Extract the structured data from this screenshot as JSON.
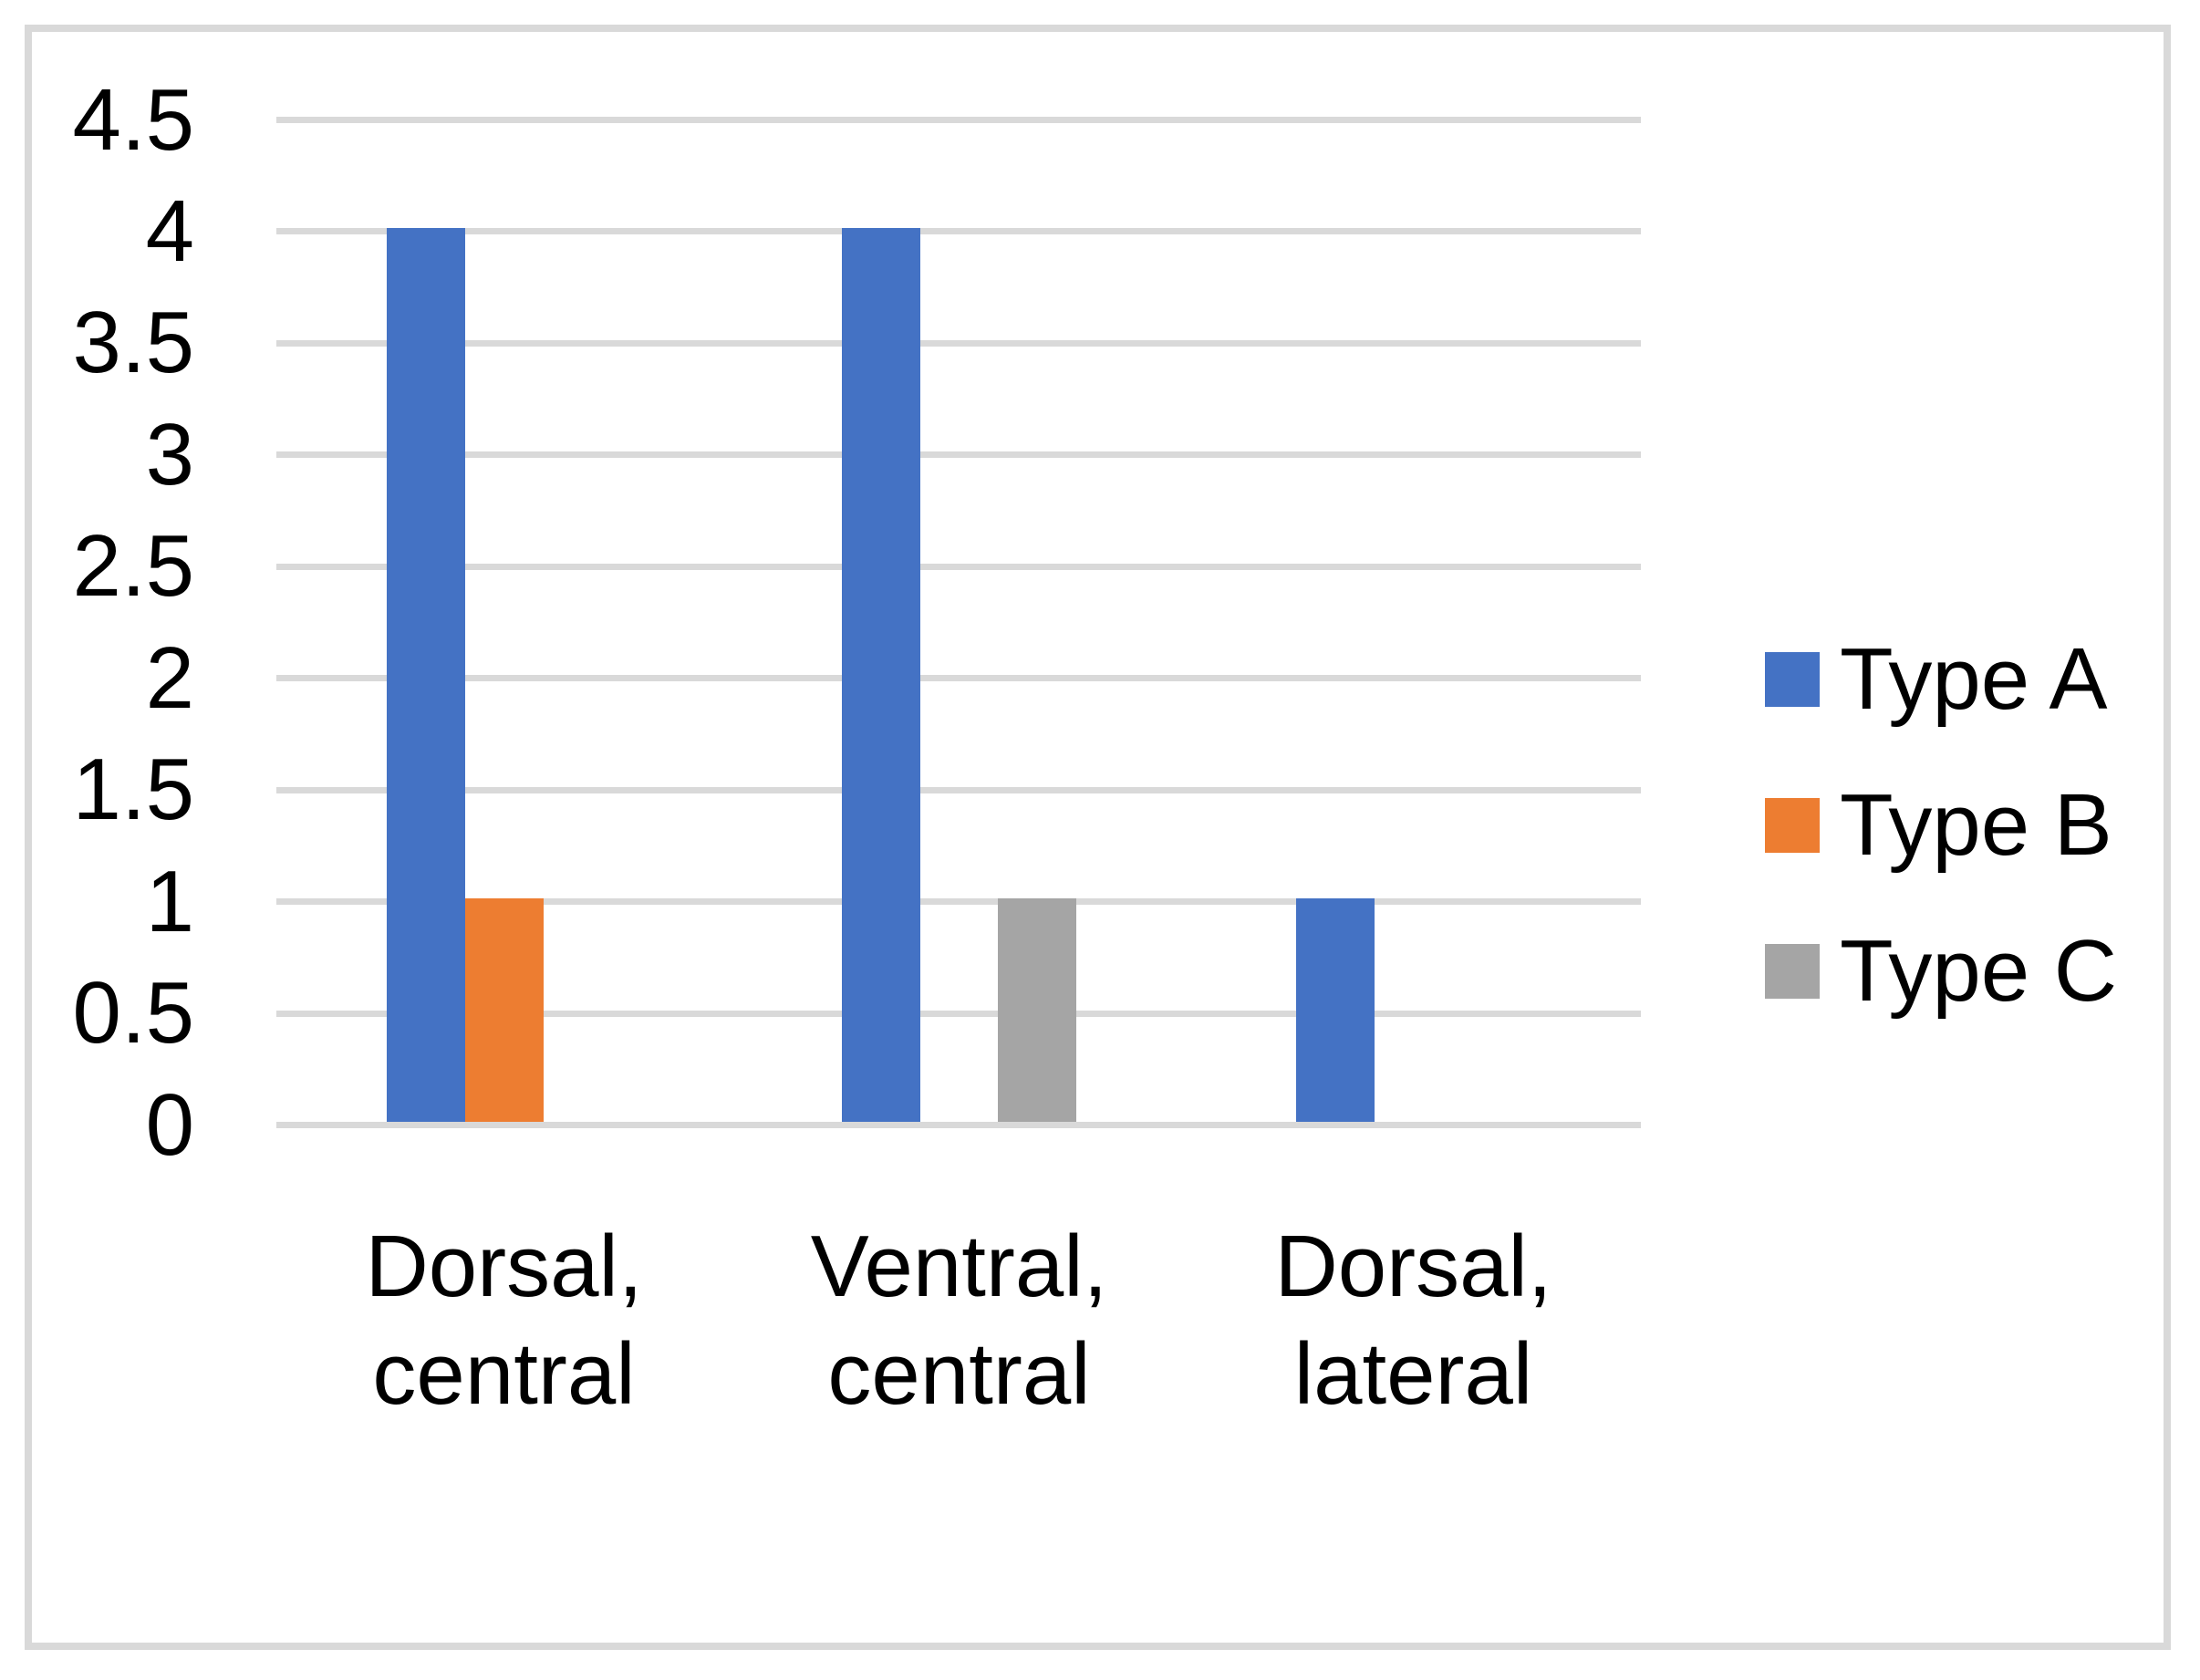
{
  "chart_data": {
    "type": "bar",
    "title": "",
    "xlabel": "",
    "ylabel": "",
    "categories": [
      "Dorsal, central",
      "Ventral, central",
      "Dorsal, lateral"
    ],
    "category_label_lines": [
      [
        "Dorsal,",
        "central"
      ],
      [
        "Ventral,",
        "central"
      ],
      [
        "Dorsal,",
        "lateral"
      ]
    ],
    "series": [
      {
        "name": "Type A",
        "color": "#4472C4",
        "values": [
          4,
          4,
          1
        ]
      },
      {
        "name": "Type B",
        "color": "#ED7D31",
        "values": [
          1,
          0,
          0
        ]
      },
      {
        "name": "Type C",
        "color": "#A5A5A5",
        "values": [
          0,
          1,
          0
        ]
      }
    ],
    "ylim": [
      0,
      4.5
    ],
    "ytick_step": 0.5,
    "ytick_labels": [
      "0",
      "0.5",
      "1",
      "1.5",
      "2",
      "2.5",
      "3",
      "3.5",
      "4",
      "4.5"
    ],
    "grid": true,
    "legend_position": "right",
    "colors": {
      "gridline": "#D9D9D9",
      "frame_border": "#D9D9D9",
      "text": "#000000",
      "background": "#FFFFFF"
    }
  }
}
